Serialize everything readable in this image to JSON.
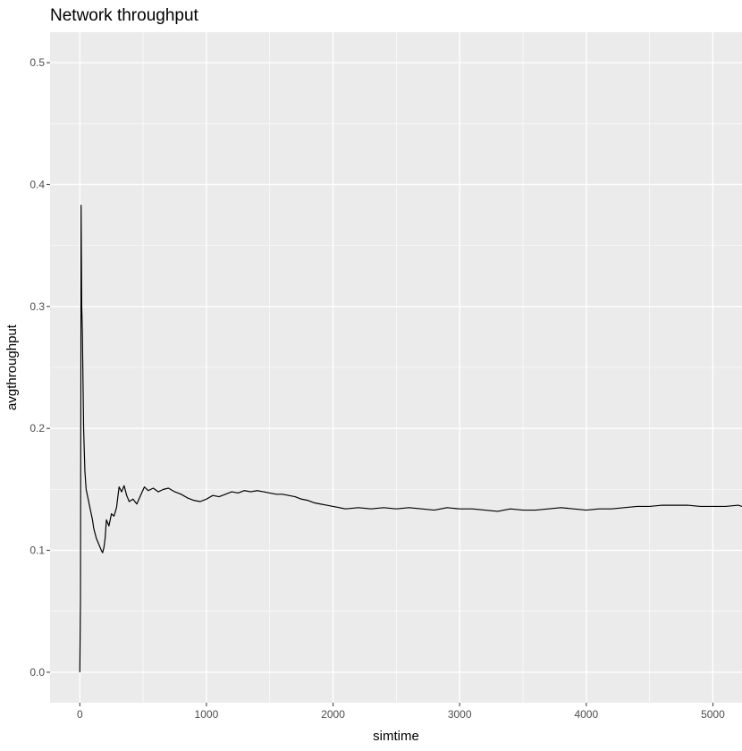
{
  "chart_data": {
    "type": "line",
    "title": "Network throughput",
    "xlabel": "simtime",
    "ylabel": "avgthroughput",
    "xlim": [
      -235,
      5230
    ],
    "ylim": [
      -0.025,
      0.525
    ],
    "x_ticks": [
      0,
      1000,
      2000,
      3000,
      4000,
      5000
    ],
    "x_tick_labels": [
      "0",
      "1000",
      "2000",
      "3000",
      "4000",
      "5000"
    ],
    "y_ticks": [
      0.0,
      0.1,
      0.2,
      0.3,
      0.4,
      0.5
    ],
    "y_tick_labels": [
      "0.0",
      "0.1",
      "0.2",
      "0.3",
      "0.4",
      "0.5"
    ],
    "grid": true,
    "colors": {
      "panel": "#ebebeb",
      "grid": "#ffffff",
      "line": "#000000"
    },
    "series": [
      {
        "x": [
          0,
          5,
          10,
          15,
          20,
          25,
          30,
          40,
          50,
          60,
          70,
          80,
          90,
          100,
          110,
          130,
          150,
          170,
          180,
          190,
          200,
          210,
          230,
          250,
          270,
          290,
          310,
          330,
          350,
          370,
          390,
          420,
          450,
          480,
          510,
          540,
          580,
          620,
          660,
          700,
          750,
          800,
          850,
          900,
          950,
          1000,
          1050,
          1100,
          1150,
          1200,
          1250,
          1300,
          1350,
          1400,
          1450,
          1500,
          1550,
          1600,
          1650,
          1700,
          1750,
          1800,
          1850,
          1900,
          1950,
          2000,
          2100,
          2200,
          2300,
          2400,
          2500,
          2600,
          2700,
          2800,
          2900,
          3000,
          3100,
          3200,
          3300,
          3400,
          3500,
          3600,
          3700,
          3800,
          3900,
          4000,
          4100,
          4200,
          4300,
          4400,
          4500,
          4600,
          4700,
          4800,
          4900,
          5000,
          5100,
          5200,
          5230
        ],
        "y": [
          0.0,
          0.06,
          0.383,
          0.3,
          0.28,
          0.24,
          0.2,
          0.165,
          0.15,
          0.145,
          0.14,
          0.135,
          0.13,
          0.125,
          0.118,
          0.11,
          0.105,
          0.1,
          0.098,
          0.102,
          0.11,
          0.125,
          0.12,
          0.13,
          0.128,
          0.135,
          0.152,
          0.148,
          0.153,
          0.145,
          0.14,
          0.142,
          0.138,
          0.145,
          0.152,
          0.149,
          0.151,
          0.148,
          0.15,
          0.151,
          0.148,
          0.146,
          0.143,
          0.141,
          0.14,
          0.142,
          0.145,
          0.144,
          0.146,
          0.148,
          0.147,
          0.149,
          0.148,
          0.149,
          0.148,
          0.147,
          0.146,
          0.146,
          0.145,
          0.144,
          0.142,
          0.141,
          0.139,
          0.138,
          0.137,
          0.136,
          0.134,
          0.135,
          0.134,
          0.135,
          0.134,
          0.135,
          0.134,
          0.133,
          0.135,
          0.134,
          0.134,
          0.133,
          0.132,
          0.134,
          0.133,
          0.133,
          0.134,
          0.135,
          0.134,
          0.133,
          0.134,
          0.134,
          0.135,
          0.136,
          0.136,
          0.137,
          0.137,
          0.137,
          0.136,
          0.136,
          0.136,
          0.137,
          0.136
        ]
      }
    ]
  }
}
